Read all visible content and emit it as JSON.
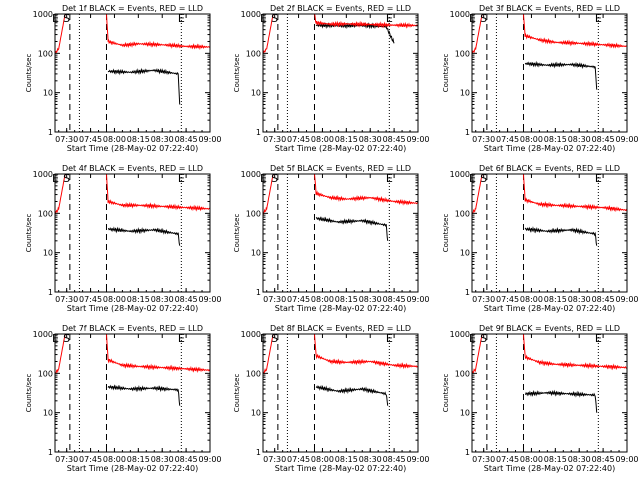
{
  "figure": {
    "xlabel": "Start Time (28-May-02 07:22:40)",
    "ylabel": "Counts/sec",
    "x_ticks": [
      "07:30",
      "07:45",
      "08:00",
      "08:15",
      "08:30",
      "08:45",
      "09:00"
    ],
    "y_ticks": [
      "1",
      "10",
      "100",
      "1000"
    ],
    "marker_labels": {
      "E": "E",
      "S": "S"
    },
    "colors": {
      "events": "#000000",
      "lld": "#ff0000",
      "axes": "#000000",
      "background": "#ffffff"
    }
  },
  "chart_data": [
    {
      "type": "line",
      "title": "Det 1f BLACK = Events, RED = LLD",
      "xlim": [
        "07:22:40",
        "09:00"
      ],
      "ylim": [
        1,
        1000
      ],
      "y_scale": "log",
      "markers": {
        "E_start": "07:23",
        "S": "07:30",
        "E_end": "08:42"
      },
      "dotted_lines": [
        "07:38",
        "08:42"
      ],
      "dashed_lines": [
        "07:32",
        "07:55"
      ],
      "series": [
        {
          "name": "BLACK = Events",
          "color": "#000000",
          "x": [
            "07:56",
            "08:10",
            "08:25",
            "08:40",
            "08:41"
          ],
          "y": [
            35,
            33,
            37,
            30,
            5
          ]
        },
        {
          "name": "RED = LLD",
          "color": "#ff0000",
          "x": [
            "07:22:40",
            "07:25",
            "07:29",
            "07:30",
            "07:55",
            "07:56",
            "08:05",
            "08:15",
            "08:30",
            "08:45",
            "09:00"
          ],
          "y": [
            100,
            130,
            1000,
            1000,
            1000,
            200,
            160,
            175,
            165,
            150,
            145
          ]
        }
      ]
    },
    {
      "type": "line",
      "title": "Det 2f BLACK = Events, RED = LLD",
      "xlim": [
        "07:22:40",
        "09:00"
      ],
      "ylim": [
        1,
        1000
      ],
      "y_scale": "log",
      "markers": {
        "E_start": "07:23",
        "S": "07:30",
        "E_end": "08:42"
      },
      "dotted_lines": [
        "07:38",
        "08:42"
      ],
      "dashed_lines": [
        "07:32",
        "07:55"
      ],
      "series": [
        {
          "name": "BLACK = Events",
          "color": "#000000",
          "x": [
            "07:56",
            "08:10",
            "08:25",
            "08:40",
            "08:45"
          ],
          "y": [
            520,
            500,
            510,
            480,
            180
          ]
        },
        {
          "name": "RED = LLD",
          "color": "#ff0000",
          "x": [
            "07:22:40",
            "07:25",
            "07:29",
            "07:30",
            "07:55",
            "07:56",
            "08:05",
            "08:15",
            "08:30",
            "08:45",
            "09:00"
          ],
          "y": [
            100,
            130,
            1000,
            1000,
            1000,
            600,
            550,
            560,
            540,
            520,
            510
          ]
        }
      ]
    },
    {
      "type": "line",
      "title": "Det 3f BLACK = Events, RED = LLD",
      "xlim": [
        "07:22:40",
        "09:00"
      ],
      "ylim": [
        1,
        1000
      ],
      "y_scale": "log",
      "markers": {
        "E_start": "07:23",
        "S": "07:30",
        "E_end": "08:42"
      },
      "dotted_lines": [
        "07:38",
        "08:42"
      ],
      "dashed_lines": [
        "07:32",
        "07:55"
      ],
      "series": [
        {
          "name": "BLACK = Events",
          "color": "#000000",
          "x": [
            "07:56",
            "08:10",
            "08:25",
            "08:40",
            "08:41"
          ],
          "y": [
            55,
            50,
            52,
            45,
            12
          ]
        },
        {
          "name": "RED = LLD",
          "color": "#ff0000",
          "x": [
            "07:22:40",
            "07:25",
            "07:29",
            "07:30",
            "07:55",
            "07:56",
            "08:05",
            "08:15",
            "08:30",
            "08:45",
            "09:00"
          ],
          "y": [
            100,
            130,
            1000,
            1000,
            1000,
            280,
            220,
            190,
            180,
            165,
            150
          ]
        }
      ]
    },
    {
      "type": "line",
      "title": "Det 4f BLACK = Events, RED = LLD",
      "xlim": [
        "07:22:40",
        "09:00"
      ],
      "ylim": [
        1,
        1000
      ],
      "y_scale": "log",
      "markers": {
        "E_start": "07:23",
        "S": "07:30",
        "E_end": "08:42"
      },
      "dotted_lines": [
        "07:38",
        "08:42"
      ],
      "dashed_lines": [
        "07:32",
        "07:55"
      ],
      "series": [
        {
          "name": "BLACK = Events",
          "color": "#000000",
          "x": [
            "07:56",
            "08:10",
            "08:25",
            "08:40",
            "08:41"
          ],
          "y": [
            40,
            35,
            38,
            30,
            15
          ]
        },
        {
          "name": "RED = LLD",
          "color": "#ff0000",
          "x": [
            "07:22:40",
            "07:25",
            "07:29",
            "07:30",
            "07:55",
            "07:56",
            "08:05",
            "08:15",
            "08:30",
            "08:45",
            "09:00"
          ],
          "y": [
            100,
            130,
            1000,
            1000,
            1000,
            200,
            160,
            160,
            150,
            140,
            130
          ]
        }
      ]
    },
    {
      "type": "line",
      "title": "Det 5f BLACK = Events, RED = LLD",
      "xlim": [
        "07:22:40",
        "09:00"
      ],
      "ylim": [
        1,
        1000
      ],
      "y_scale": "log",
      "markers": {
        "E_start": "07:23",
        "S": "07:30",
        "E_end": "08:42"
      },
      "dotted_lines": [
        "07:38",
        "08:42"
      ],
      "dashed_lines": [
        "07:32",
        "07:55"
      ],
      "series": [
        {
          "name": "BLACK = Events",
          "color": "#000000",
          "x": [
            "07:56",
            "08:10",
            "08:25",
            "08:40",
            "08:41"
          ],
          "y": [
            75,
            60,
            65,
            50,
            20
          ]
        },
        {
          "name": "RED = LLD",
          "color": "#ff0000",
          "x": [
            "07:22:40",
            "07:25",
            "07:29",
            "07:30",
            "07:55",
            "07:56",
            "08:05",
            "08:15",
            "08:30",
            "08:45",
            "09:00"
          ],
          "y": [
            100,
            130,
            1000,
            1000,
            1000,
            320,
            250,
            230,
            250,
            200,
            180
          ]
        }
      ]
    },
    {
      "type": "line",
      "title": "Det 6f BLACK = Events, RED = LLD",
      "xlim": [
        "07:22:40",
        "09:00"
      ],
      "ylim": [
        1,
        1000
      ],
      "y_scale": "log",
      "markers": {
        "E_start": "07:23",
        "S": "07:30",
        "E_end": "08:42"
      },
      "dotted_lines": [
        "07:38",
        "08:42"
      ],
      "dashed_lines": [
        "07:32",
        "07:55"
      ],
      "series": [
        {
          "name": "BLACK = Events",
          "color": "#000000",
          "x": [
            "07:56",
            "08:10",
            "08:25",
            "08:40",
            "08:41"
          ],
          "y": [
            40,
            35,
            38,
            30,
            15
          ]
        },
        {
          "name": "RED = LLD",
          "color": "#ff0000",
          "x": [
            "07:22:40",
            "07:25",
            "07:29",
            "07:30",
            "07:55",
            "07:56",
            "08:05",
            "08:15",
            "08:30",
            "08:45",
            "09:00"
          ],
          "y": [
            100,
            130,
            1000,
            1000,
            1000,
            220,
            170,
            160,
            150,
            140,
            120
          ]
        }
      ]
    },
    {
      "type": "line",
      "title": "Det 7f BLACK = Events, RED = LLD",
      "xlim": [
        "07:22:40",
        "09:00"
      ],
      "ylim": [
        1,
        1000
      ],
      "y_scale": "log",
      "markers": {
        "E_start": "07:23",
        "S": "07:30",
        "E_end": "08:42"
      },
      "dotted_lines": [
        "07:38",
        "08:42"
      ],
      "dashed_lines": [
        "07:32",
        "07:55"
      ],
      "series": [
        {
          "name": "BLACK = Events",
          "color": "#000000",
          "x": [
            "07:56",
            "08:10",
            "08:25",
            "08:40",
            "08:41"
          ],
          "y": [
            45,
            40,
            42,
            38,
            15
          ]
        },
        {
          "name": "RED = LLD",
          "color": "#ff0000",
          "x": [
            "07:22:40",
            "07:25",
            "07:29",
            "07:30",
            "07:55",
            "07:56",
            "08:05",
            "08:15",
            "08:30",
            "08:45",
            "09:00"
          ],
          "y": [
            100,
            130,
            1000,
            1000,
            1000,
            220,
            160,
            150,
            140,
            130,
            120
          ]
        }
      ]
    },
    {
      "type": "line",
      "title": "Det 8f BLACK = Events, RED = LLD",
      "xlim": [
        "07:22:40",
        "09:00"
      ],
      "ylim": [
        1,
        1000
      ],
      "y_scale": "log",
      "markers": {
        "E_start": "07:23",
        "S": "07:30",
        "E_end": "08:42"
      },
      "dotted_lines": [
        "07:38",
        "08:42"
      ],
      "dashed_lines": [
        "07:32",
        "07:55"
      ],
      "series": [
        {
          "name": "BLACK = Events",
          "color": "#000000",
          "x": [
            "07:56",
            "08:10",
            "08:25",
            "08:40",
            "08:41"
          ],
          "y": [
            45,
            35,
            40,
            30,
            15
          ]
        },
        {
          "name": "RED = LLD",
          "color": "#ff0000",
          "x": [
            "07:22:40",
            "07:25",
            "07:29",
            "07:30",
            "07:55",
            "07:56",
            "08:05",
            "08:15",
            "08:30",
            "08:45",
            "09:00"
          ],
          "y": [
            100,
            130,
            1000,
            1000,
            1000,
            280,
            200,
            190,
            200,
            160,
            150
          ]
        }
      ]
    },
    {
      "type": "line",
      "title": "Det 9f BLACK = Events, RED = LLD",
      "xlim": [
        "07:22:40",
        "09:00"
      ],
      "ylim": [
        1,
        1000
      ],
      "y_scale": "log",
      "markers": {
        "E_start": "07:23",
        "S": "07:30",
        "E_end": "08:42"
      },
      "dotted_lines": [
        "07:38",
        "08:42"
      ],
      "dashed_lines": [
        "07:32",
        "07:55"
      ],
      "series": [
        {
          "name": "BLACK = Events",
          "color": "#000000",
          "x": [
            "07:56",
            "08:10",
            "08:25",
            "08:40",
            "08:41"
          ],
          "y": [
            30,
            32,
            30,
            28,
            10
          ]
        },
        {
          "name": "RED = LLD",
          "color": "#ff0000",
          "x": [
            "07:22:40",
            "07:25",
            "07:29",
            "07:30",
            "07:55",
            "07:56",
            "08:05",
            "08:15",
            "08:30",
            "08:45",
            "09:00"
          ],
          "y": [
            100,
            130,
            1000,
            1000,
            1000,
            260,
            190,
            170,
            160,
            150,
            140
          ]
        }
      ]
    }
  ]
}
